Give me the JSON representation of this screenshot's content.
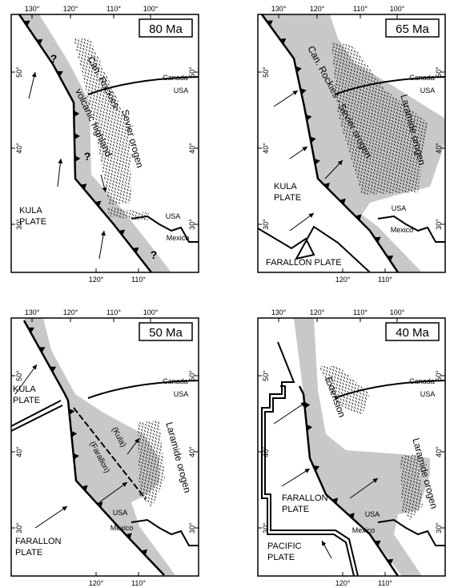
{
  "ticks": {
    "top": [
      "130°",
      "120°",
      "110°",
      "100°"
    ],
    "bottom": [
      "120°",
      "110°"
    ],
    "lat": [
      "50°",
      "40°",
      "30°"
    ]
  },
  "panels": [
    {
      "age": "80 Ma",
      "labels": [
        "Can. Rockies-",
        "volcanic highland",
        "Sevier orogen",
        "?",
        "?",
        "?",
        "Canada",
        "USA",
        "USA",
        "Mexico",
        "KULA",
        "PLATE"
      ]
    },
    {
      "age": "65 Ma",
      "labels": [
        "Can. Rockies - Sevier orogen",
        "Laramide orogen",
        "Canada",
        "USA",
        "USA",
        "Mexico",
        "KULA",
        "PLATE",
        "FARALLON PLATE"
      ]
    },
    {
      "age": "50 Ma",
      "labels": [
        "Canada",
        "USA",
        "KULA",
        "PLATE",
        "(Kula)",
        "(Farallon)",
        "Laramide orogen",
        "USA",
        "Mexico",
        "FARALLON",
        "PLATE"
      ]
    },
    {
      "age": "40 Ma",
      "labels": [
        "Canada",
        "USA",
        "Extension",
        "Laramide orogen",
        "FARALLON",
        "PLATE",
        "USA",
        "Mexico",
        "PACIFIC",
        "PLATE"
      ]
    }
  ]
}
